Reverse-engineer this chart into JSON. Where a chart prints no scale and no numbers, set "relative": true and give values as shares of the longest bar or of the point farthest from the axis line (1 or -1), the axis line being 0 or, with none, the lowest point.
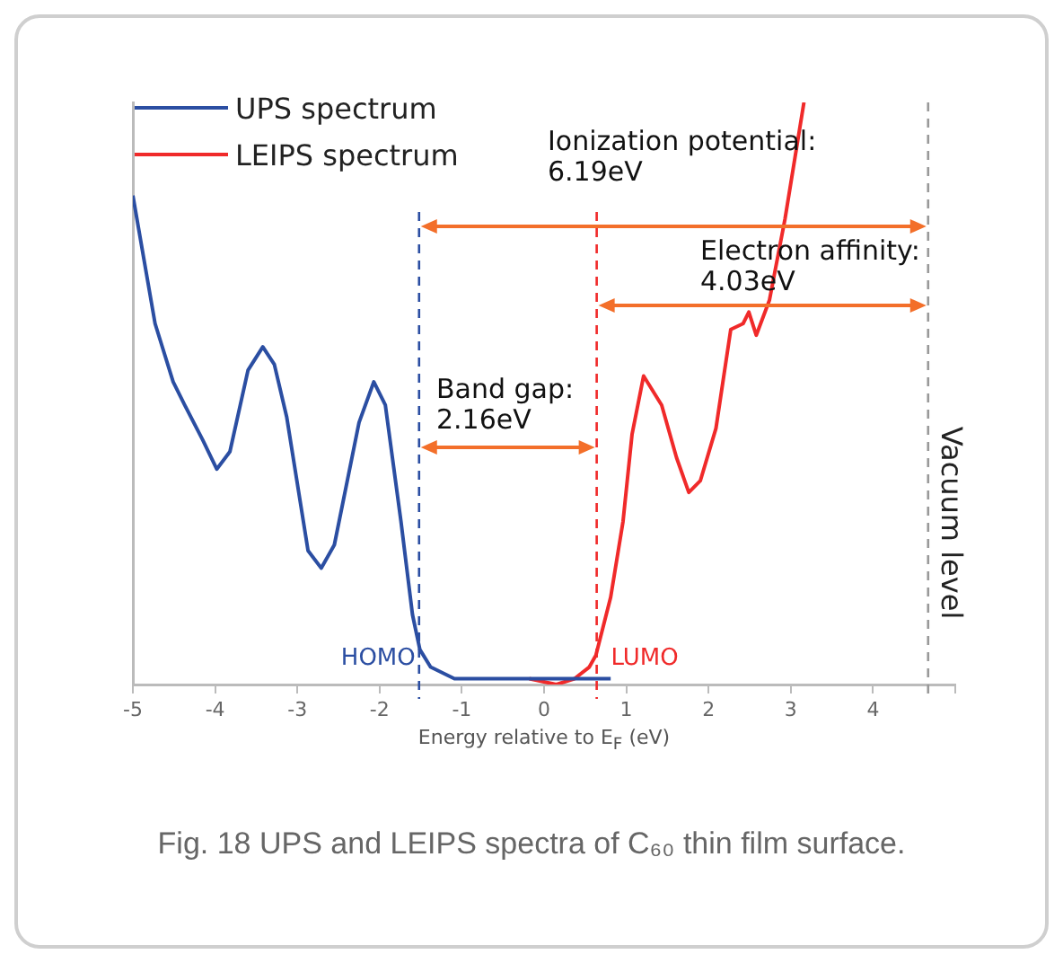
{
  "chart_data": {
    "type": "line",
    "relative": true,
    "xlabel": "Energy relative to E$_{F}$ (eV)",
    "xlim": [
      -5,
      5
    ],
    "xticks": [
      -5,
      -4,
      -3,
      -2,
      -1,
      0,
      1,
      2,
      3,
      4,
      {
        "value": 5,
        "label": null
      }
    ],
    "legend": "top left",
    "grid": false,
    "marker": "none",
    "line_style": "solid",
    "series": [
      {
        "name": "UPS spectrum",
        "color": "#2b4ea2",
        "x": [
          -5,
          -4.73,
          -4.51,
          -4.37,
          -4.15,
          -3.98,
          -3.82,
          -3.6,
          -3.42,
          -3.28,
          -3.13,
          -2.87,
          -2.71,
          -2.55,
          -2.25,
          -2.07,
          -1.93,
          -1.74,
          -1.6,
          -1.51,
          -1.38,
          -1.09,
          -0.21,
          0.81
        ],
        "values": [
          0.84,
          0.62,
          0.52,
          0.48,
          0.42,
          0.37,
          0.4,
          0.54,
          0.58,
          0.55,
          0.46,
          0.23,
          0.2,
          0.24,
          0.45,
          0.52,
          0.48,
          0.28,
          0.12,
          0.06,
          0.03,
          0.01,
          0.01,
          0.01
        ]
      },
      {
        "name": "LEIPS spectrum",
        "color": "#f02a2a",
        "x": [
          -0.18,
          0.15,
          0.37,
          0.55,
          0.63,
          0.81,
          0.96,
          1.07,
          1.21,
          1.43,
          1.61,
          1.76,
          1.9,
          2.09,
          2.27,
          2.42,
          2.49,
          2.58,
          2.74,
          2.93,
          3.16
        ],
        "values": [
          0.01,
          0.0,
          0.01,
          0.03,
          0.05,
          0.15,
          0.28,
          0.43,
          0.53,
          0.48,
          0.39,
          0.33,
          0.35,
          0.44,
          0.61,
          0.62,
          0.64,
          0.6,
          0.66,
          0.8,
          1
        ]
      }
    ],
    "ref_lines": [
      {
        "axis": "x",
        "value": -1.52,
        "label": "HOMO",
        "color": "#2b4ea2",
        "line_style": "dashed"
      },
      {
        "axis": "x",
        "value": 0.64,
        "label": "LUMO",
        "color": "#f02a2a",
        "line_style": "dashed"
      },
      {
        "axis": "x",
        "value": 4.67,
        "label": "Vacuum level",
        "color": "#999999",
        "line_style": "dashed"
      }
    ],
    "annotations": [
      "Ionization potential:\n6.19eV",
      "Electron affinity:\n4.03eV",
      "Band gap:\n2.16eV",
      "Fig. 18    UPS and LEIPS spectra of C₆₀ thin film surface."
    ]
  }
}
